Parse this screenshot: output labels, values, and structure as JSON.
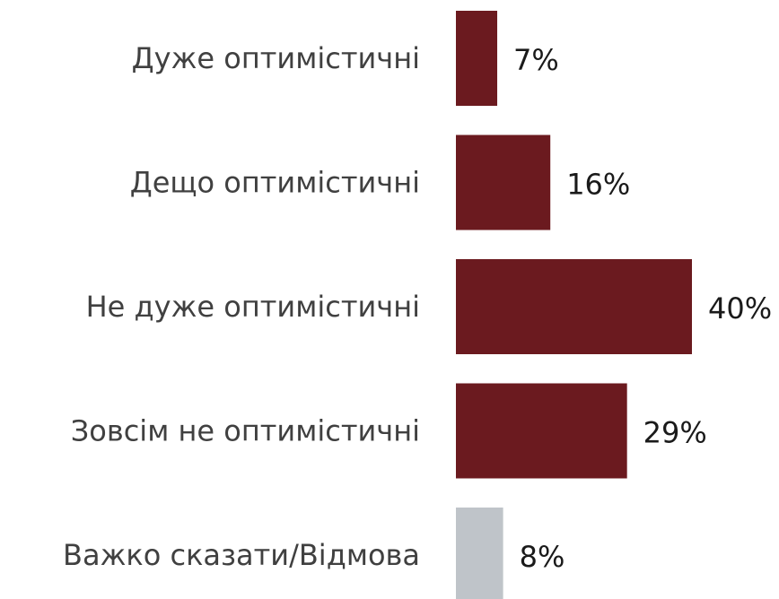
{
  "chart_data": {
    "type": "bar",
    "orientation": "horizontal",
    "categories": [
      "Дуже оптимістичні",
      "Дещо оптимістичні",
      "Не дуже оптимістичні",
      "Зовсім не оптимістичні",
      "Важко сказати/Відмова"
    ],
    "values": [
      7,
      16,
      40,
      29,
      8
    ],
    "value_labels": [
      "7%",
      "16%",
      "40%",
      "29%",
      "8%"
    ],
    "bar_colors": [
      "#6b1a1f",
      "#6b1a1f",
      "#6b1a1f",
      "#6b1a1f",
      "#bfc4c9"
    ],
    "title": "",
    "xlabel": "",
    "ylabel": "",
    "xlim": [
      0,
      40
    ],
    "grid": false,
    "legend": "none"
  }
}
